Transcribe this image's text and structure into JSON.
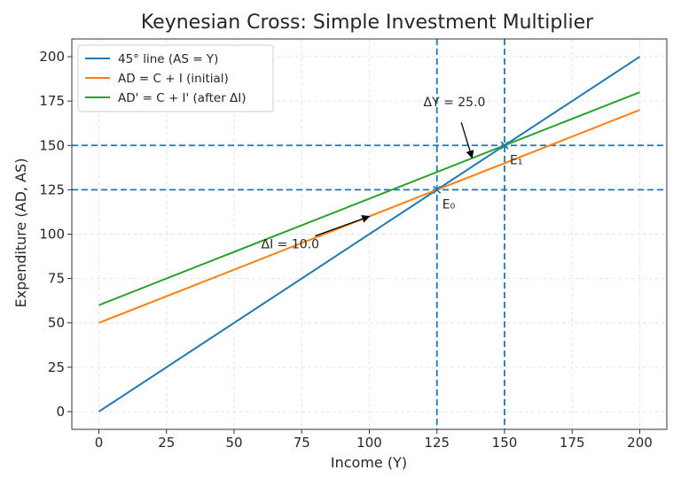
{
  "chart_data": {
    "type": "line",
    "title": "Keynesian Cross: Simple Investment Multiplier",
    "xlabel": "Income (Y)",
    "ylabel": "Expenditure (AD, AS)",
    "xlim": [
      -10,
      210
    ],
    "ylim": [
      -10,
      210
    ],
    "x_ticks": [
      0,
      25,
      50,
      75,
      100,
      125,
      150,
      175,
      200
    ],
    "y_ticks": [
      0,
      25,
      50,
      75,
      100,
      125,
      150,
      175,
      200
    ],
    "grid": true,
    "legend_position": "top-left",
    "series": [
      {
        "name": "45° line (AS = Y)",
        "color": "#1f77b4",
        "x": [
          0,
          200
        ],
        "y": [
          0,
          200
        ]
      },
      {
        "name": "AD = C + I (initial)",
        "color": "#ff7f0e",
        "x": [
          0,
          200
        ],
        "y": [
          50,
          170
        ]
      },
      {
        "name": "AD' = C + I' (after ΔI)",
        "color": "#2ca02c",
        "x": [
          0,
          200
        ],
        "y": [
          60,
          180
        ]
      }
    ],
    "reference_lines": {
      "color": "#1f77b4",
      "vertical": [
        125,
        150
      ],
      "horizontal": [
        125,
        150
      ]
    },
    "points": [
      {
        "label": "E₀",
        "x": 125,
        "y": 125
      },
      {
        "label": "E₁",
        "x": 150,
        "y": 150
      }
    ],
    "annotations": [
      {
        "text": "ΔI = 10.0",
        "text_x": 60,
        "text_y": 92,
        "arrow_from": [
          80,
          99
        ],
        "arrow_to": [
          100,
          110
        ]
      },
      {
        "text": "ΔY = 25.0",
        "text_x": 120,
        "text_y": 172,
        "arrow_from": [
          134,
          163
        ],
        "arrow_to": [
          138,
          143
        ]
      }
    ]
  }
}
